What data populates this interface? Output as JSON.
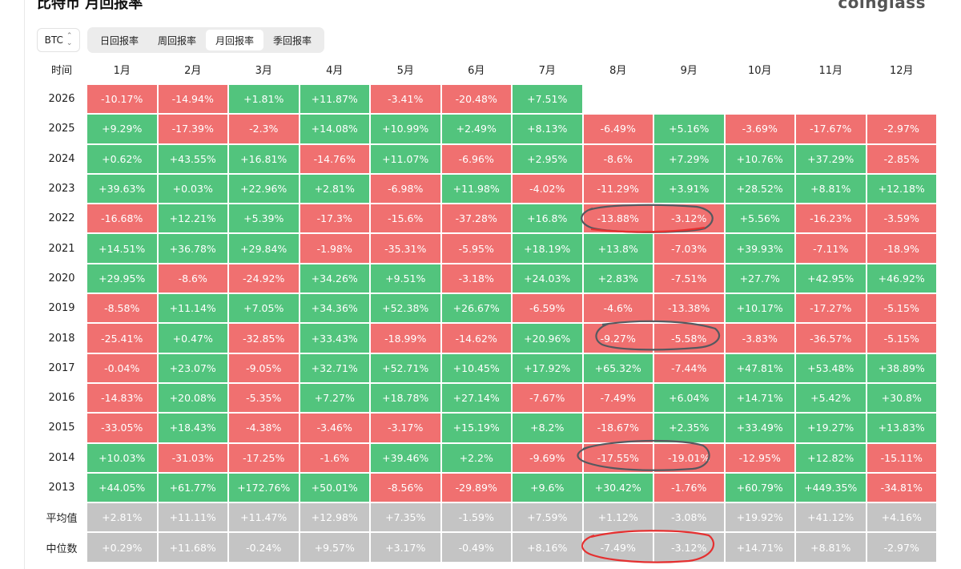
{
  "title": "比特币 月回报率",
  "brand": "coinglass",
  "asset_selector": {
    "value": "BTC"
  },
  "tabs": [
    {
      "label": "日回报率",
      "active": false
    },
    {
      "label": "周回报率",
      "active": false
    },
    {
      "label": "月回报率",
      "active": true
    },
    {
      "label": "季回报率",
      "active": false
    }
  ],
  "table": {
    "row_header": "时间",
    "months": [
      "1月",
      "2月",
      "3月",
      "4月",
      "5月",
      "6月",
      "7月",
      "8月",
      "9月",
      "10月",
      "11月",
      "12月"
    ],
    "rows": [
      {
        "label": "2026",
        "values": [
          "-10.17%",
          "-14.94%",
          "+1.81%",
          "+11.87%",
          "-3.41%",
          "-20.48%",
          "+7.51%",
          "",
          "",
          "",
          "",
          ""
        ]
      },
      {
        "label": "2025",
        "values": [
          "+9.29%",
          "-17.39%",
          "-2.3%",
          "+14.08%",
          "+10.99%",
          "+2.49%",
          "+8.13%",
          "-6.49%",
          "+5.16%",
          "-3.69%",
          "-17.67%",
          "-2.97%"
        ]
      },
      {
        "label": "2024",
        "values": [
          "+0.62%",
          "+43.55%",
          "+16.81%",
          "-14.76%",
          "+11.07%",
          "-6.96%",
          "+2.95%",
          "-8.6%",
          "+7.29%",
          "+10.76%",
          "+37.29%",
          "-2.85%"
        ]
      },
      {
        "label": "2023",
        "values": [
          "+39.63%",
          "+0.03%",
          "+22.96%",
          "+2.81%",
          "-6.98%",
          "+11.98%",
          "-4.02%",
          "-11.29%",
          "+3.91%",
          "+28.52%",
          "+8.81%",
          "+12.18%"
        ]
      },
      {
        "label": "2022",
        "values": [
          "-16.68%",
          "+12.21%",
          "+5.39%",
          "-17.3%",
          "-15.6%",
          "-37.28%",
          "+16.8%",
          "-13.88%",
          "-3.12%",
          "+5.56%",
          "-16.23%",
          "-3.59%"
        ]
      },
      {
        "label": "2021",
        "values": [
          "+14.51%",
          "+36.78%",
          "+29.84%",
          "-1.98%",
          "-35.31%",
          "-5.95%",
          "+18.19%",
          "+13.8%",
          "-7.03%",
          "+39.93%",
          "-7.11%",
          "-18.9%"
        ]
      },
      {
        "label": "2020",
        "values": [
          "+29.95%",
          "-8.6%",
          "-24.92%",
          "+34.26%",
          "+9.51%",
          "-3.18%",
          "+24.03%",
          "+2.83%",
          "-7.51%",
          "+27.7%",
          "+42.95%",
          "+46.92%"
        ]
      },
      {
        "label": "2019",
        "values": [
          "-8.58%",
          "+11.14%",
          "+7.05%",
          "+34.36%",
          "+52.38%",
          "+26.67%",
          "-6.59%",
          "-4.6%",
          "-13.38%",
          "+10.17%",
          "-17.27%",
          "-5.15%"
        ]
      },
      {
        "label": "2018",
        "values": [
          "-25.41%",
          "+0.47%",
          "-32.85%",
          "+33.43%",
          "-18.99%",
          "-14.62%",
          "+20.96%",
          "-9.27%",
          "-5.58%",
          "-3.83%",
          "-36.57%",
          "-5.15%"
        ]
      },
      {
        "label": "2017",
        "values": [
          "-0.04%",
          "+23.07%",
          "-9.05%",
          "+32.71%",
          "+52.71%",
          "+10.45%",
          "+17.92%",
          "+65.32%",
          "-7.44%",
          "+47.81%",
          "+53.48%",
          "+38.89%"
        ]
      },
      {
        "label": "2016",
        "values": [
          "-14.83%",
          "+20.08%",
          "-5.35%",
          "+7.27%",
          "+18.78%",
          "+27.14%",
          "-7.67%",
          "-7.49%",
          "+6.04%",
          "+14.71%",
          "+5.42%",
          "+30.8%"
        ]
      },
      {
        "label": "2015",
        "values": [
          "-33.05%",
          "+18.43%",
          "-4.38%",
          "-3.46%",
          "-3.17%",
          "+15.19%",
          "+8.2%",
          "-18.67%",
          "+2.35%",
          "+33.49%",
          "+19.27%",
          "+13.83%"
        ]
      },
      {
        "label": "2014",
        "values": [
          "+10.03%",
          "-31.03%",
          "-17.25%",
          "-1.6%",
          "+39.46%",
          "+2.2%",
          "-9.69%",
          "-17.55%",
          "-19.01%",
          "-12.95%",
          "+12.82%",
          "-15.11%"
        ]
      },
      {
        "label": "2013",
        "values": [
          "+44.05%",
          "+61.77%",
          "+172.76%",
          "+50.01%",
          "-8.56%",
          "-29.89%",
          "+9.6%",
          "+30.42%",
          "-1.76%",
          "+60.79%",
          "+449.35%",
          "-34.81%"
        ]
      }
    ],
    "stats": [
      {
        "label": "平均值",
        "values": [
          "+2.81%",
          "+11.11%",
          "+11.47%",
          "+12.98%",
          "+7.35%",
          "-1.59%",
          "+7.59%",
          "+1.12%",
          "-3.08%",
          "+19.92%",
          "+41.12%",
          "+4.16%"
        ]
      },
      {
        "label": "中位数",
        "values": [
          "+0.29%",
          "+11.68%",
          "-0.24%",
          "+9.57%",
          "+3.17%",
          "-0.49%",
          "+8.16%",
          "-7.49%",
          "-3.12%",
          "+14.71%",
          "+8.81%",
          "-2.97%"
        ]
      }
    ]
  },
  "colors": {
    "positive": "#52c47d",
    "negative": "#f07070",
    "stat": "#c4c4c4",
    "annotation_dark": "#55595f",
    "annotation_red": "#e53030"
  }
}
